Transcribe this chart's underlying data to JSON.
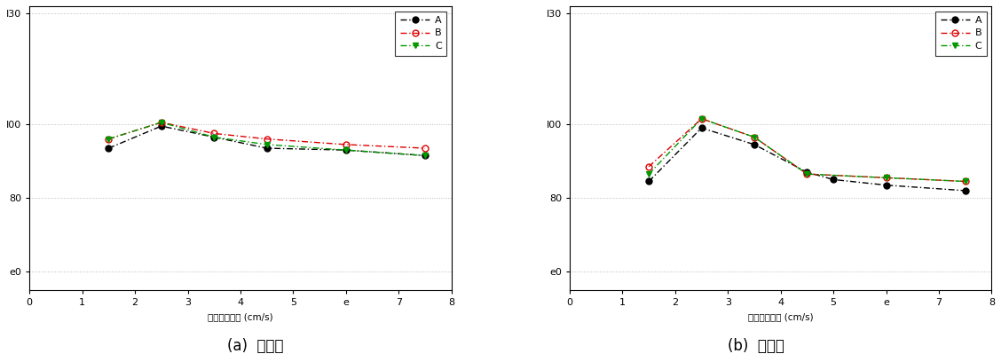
{
  "left_chart": {
    "series": {
      "A": {
        "x": [
          1.5,
          2.5,
          3.5,
          4.5,
          6.0,
          7.5
        ],
        "y": [
          93.5,
          99.5,
          96.5,
          93.5,
          93.0,
          91.5
        ],
        "color": "#000000",
        "marker": "o",
        "fillstyle": "full"
      },
      "B": {
        "x": [
          1.5,
          2.5,
          3.5,
          4.5,
          6.0,
          7.5
        ],
        "y": [
          96.0,
          100.5,
          97.5,
          96.0,
          94.5,
          93.5
        ],
        "color": "#dd0000",
        "marker": "o",
        "fillstyle": "none"
      },
      "C": {
        "x": [
          1.5,
          2.5,
          3.5,
          4.5,
          6.0,
          7.5
        ],
        "y": [
          96.0,
          100.5,
          96.5,
          94.5,
          93.0,
          91.5
        ],
        "color": "#009900",
        "marker": "v",
        "fillstyle": "full"
      }
    }
  },
  "right_chart": {
    "series": {
      "A": {
        "x": [
          1.5,
          2.5,
          3.5,
          4.5,
          5.0,
          6.0,
          7.5
        ],
        "y": [
          84.5,
          99.0,
          94.5,
          87.0,
          85.0,
          83.5,
          82.0
        ],
        "color": "#000000",
        "marker": "o",
        "fillstyle": "full"
      },
      "B": {
        "x": [
          1.5,
          2.5,
          3.5,
          4.5,
          6.0,
          7.5
        ],
        "y": [
          88.5,
          101.5,
          96.5,
          86.5,
          85.5,
          84.5
        ],
        "color": "#dd0000",
        "marker": "o",
        "fillstyle": "none"
      },
      "C": {
        "x": [
          1.5,
          2.5,
          3.5,
          4.5,
          6.0,
          7.5
        ],
        "y": [
          86.5,
          101.5,
          96.5,
          86.5,
          85.5,
          84.5
        ],
        "color": "#009900",
        "marker": "v",
        "fillstyle": "full"
      }
    }
  },
  "xlim": [
    0,
    8
  ],
  "ylim": [
    55,
    132
  ],
  "ytick_positions": [
    60,
    80,
    100,
    130
  ],
  "ytick_labels": [
    "e0",
    "80",
    "I00",
    "I30"
  ],
  "xtick_positions": [
    0,
    1,
    2,
    3,
    4,
    5,
    6,
    7,
    8
  ],
  "xtick_labels": [
    "0",
    "1",
    "2",
    "3",
    "4",
    "5",
    "e",
    "7",
    "8"
  ],
  "xlabel": "시료투입속도 (cm/s)",
  "legend_labels": [
    "A",
    "B",
    "C"
  ],
  "subtitle_left": "(a)  회수율",
  "subtitle_right": "(b)  기각율",
  "background_color": "#ffffff",
  "grid_color": "#bbbbbb",
  "line_dashes": [
    5,
    2,
    1,
    2
  ],
  "markersize": 5,
  "linewidth": 1.0
}
